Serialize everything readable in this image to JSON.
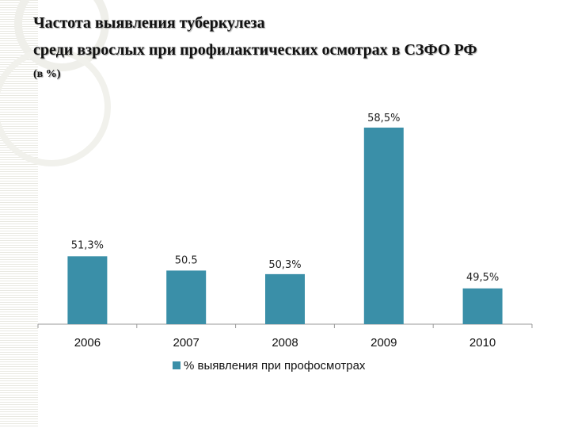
{
  "chart_data": {
    "type": "bar",
    "title_lines": [
      "Частота выявления туберкулеза",
      "среди взрослых при профилактических осмотрах в  СЗФО РФ",
      "(в %)"
    ],
    "categories": [
      "2006",
      "2007",
      "2008",
      "2009",
      "2010"
    ],
    "series": [
      {
        "name": "% выявления при профосмотрах",
        "values": [
          51.3,
          50.5,
          50.3,
          58.5,
          49.5
        ],
        "data_labels": [
          "51,3%",
          "50.5",
          "50,3%",
          "58,5%",
          "49,5%"
        ],
        "color": "#3a8fa8"
      }
    ],
    "legend": "bottom",
    "grid": false
  }
}
